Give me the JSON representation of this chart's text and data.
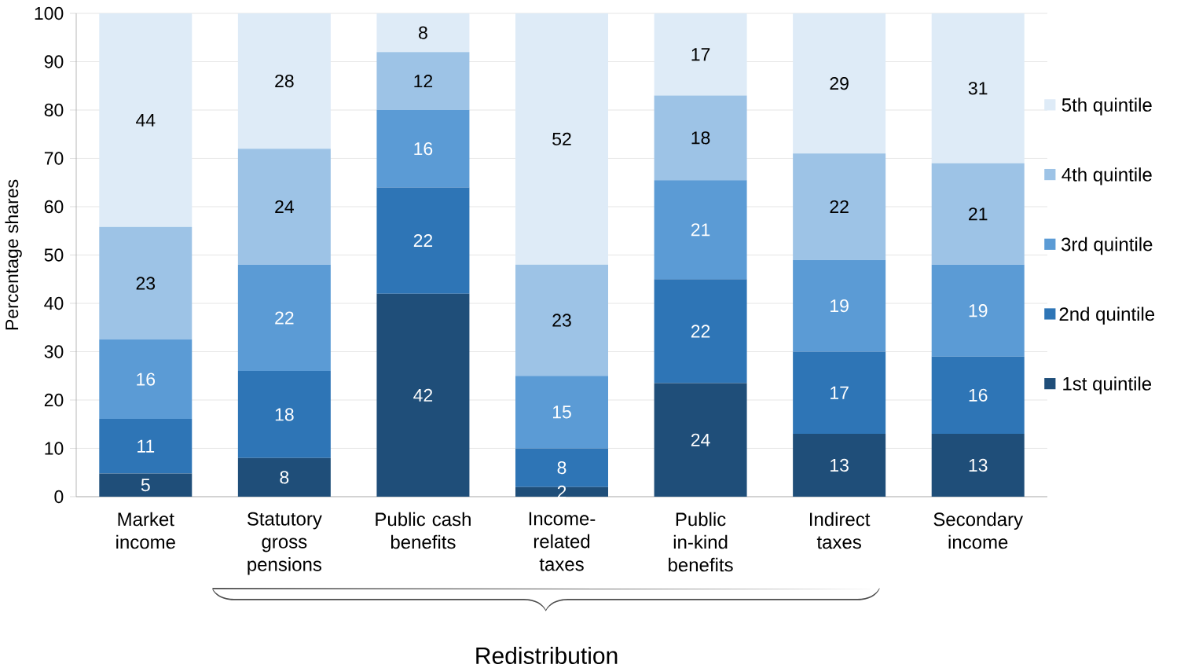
{
  "chart_data": {
    "type": "bar",
    "stacked": true,
    "ylabel": "Percentage shares",
    "categories": [
      "Market income",
      "Statutory gross pensions",
      "Public cash benefits",
      "Income-related taxes",
      "Public in-kind benefits",
      "Indirect taxes",
      "Secondary income"
    ],
    "series": [
      {
        "name": "1st quintile",
        "color": "#1f4e79",
        "values": [
          4.8,
          8,
          42,
          2,
          23.5,
          13,
          13
        ],
        "value_labels": [
          "5",
          "8",
          "42",
          "2",
          "24",
          "13",
          "13"
        ]
      },
      {
        "name": "2nd quintile",
        "color": "#2e75b6",
        "values": [
          11.3,
          18,
          22,
          8,
          21.5,
          17,
          16
        ],
        "value_labels": [
          "11",
          "18",
          "22",
          "8",
          "22",
          "17",
          "16"
        ]
      },
      {
        "name": "3rd quintile",
        "color": "#5b9bd5",
        "values": [
          16.4,
          22,
          16,
          15,
          20.5,
          19,
          19
        ],
        "value_labels": [
          "16",
          "22",
          "16",
          "15",
          "21",
          "19",
          "19"
        ]
      },
      {
        "name": "4th quintile",
        "color": "#9dc3e6",
        "values": [
          23.3,
          24,
          12,
          23,
          17.5,
          22,
          21
        ],
        "value_labels": [
          "23",
          "24",
          "12",
          "23",
          "18",
          "22",
          "21"
        ]
      },
      {
        "name": "5th quintile",
        "color": "#deebf7",
        "values": [
          44.2,
          28,
          8,
          52,
          17,
          29,
          31
        ],
        "value_labels": [
          "44",
          "28",
          "8",
          "52",
          "17",
          "29",
          "31"
        ]
      }
    ],
    "ylim": [
      0,
      100
    ],
    "yticks": [
      0,
      10,
      20,
      30,
      40,
      50,
      60,
      70,
      80,
      90,
      100
    ],
    "grid": "y",
    "legend": "right",
    "annotations": [
      "Redistribution"
    ]
  }
}
